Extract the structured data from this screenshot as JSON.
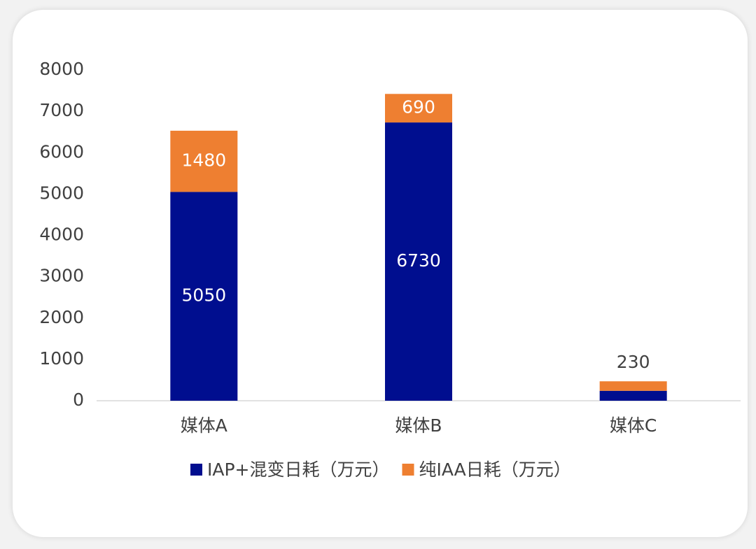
{
  "chart_data": {
    "type": "stacked_bar",
    "categories": [
      "媒体A",
      "媒体B",
      "媒体C"
    ],
    "series": [
      {
        "name": "IAP+混变日耗（万元）",
        "color": "#000e8f",
        "values": [
          5050,
          6730,
          240
        ],
        "value_labels": [
          "5050",
          "6730",
          null
        ]
      },
      {
        "name": "纯IAA日耗（万元）",
        "color": "#ee7f31",
        "values": [
          1480,
          690,
          230
        ],
        "value_labels": [
          "1480",
          "690",
          "230"
        ]
      }
    ],
    "ylim": [
      0,
      8000
    ],
    "yticks": [
      0,
      1000,
      2000,
      3000,
      4000,
      5000,
      6000,
      7000,
      8000
    ],
    "legend": "bottom",
    "grid": false
  }
}
